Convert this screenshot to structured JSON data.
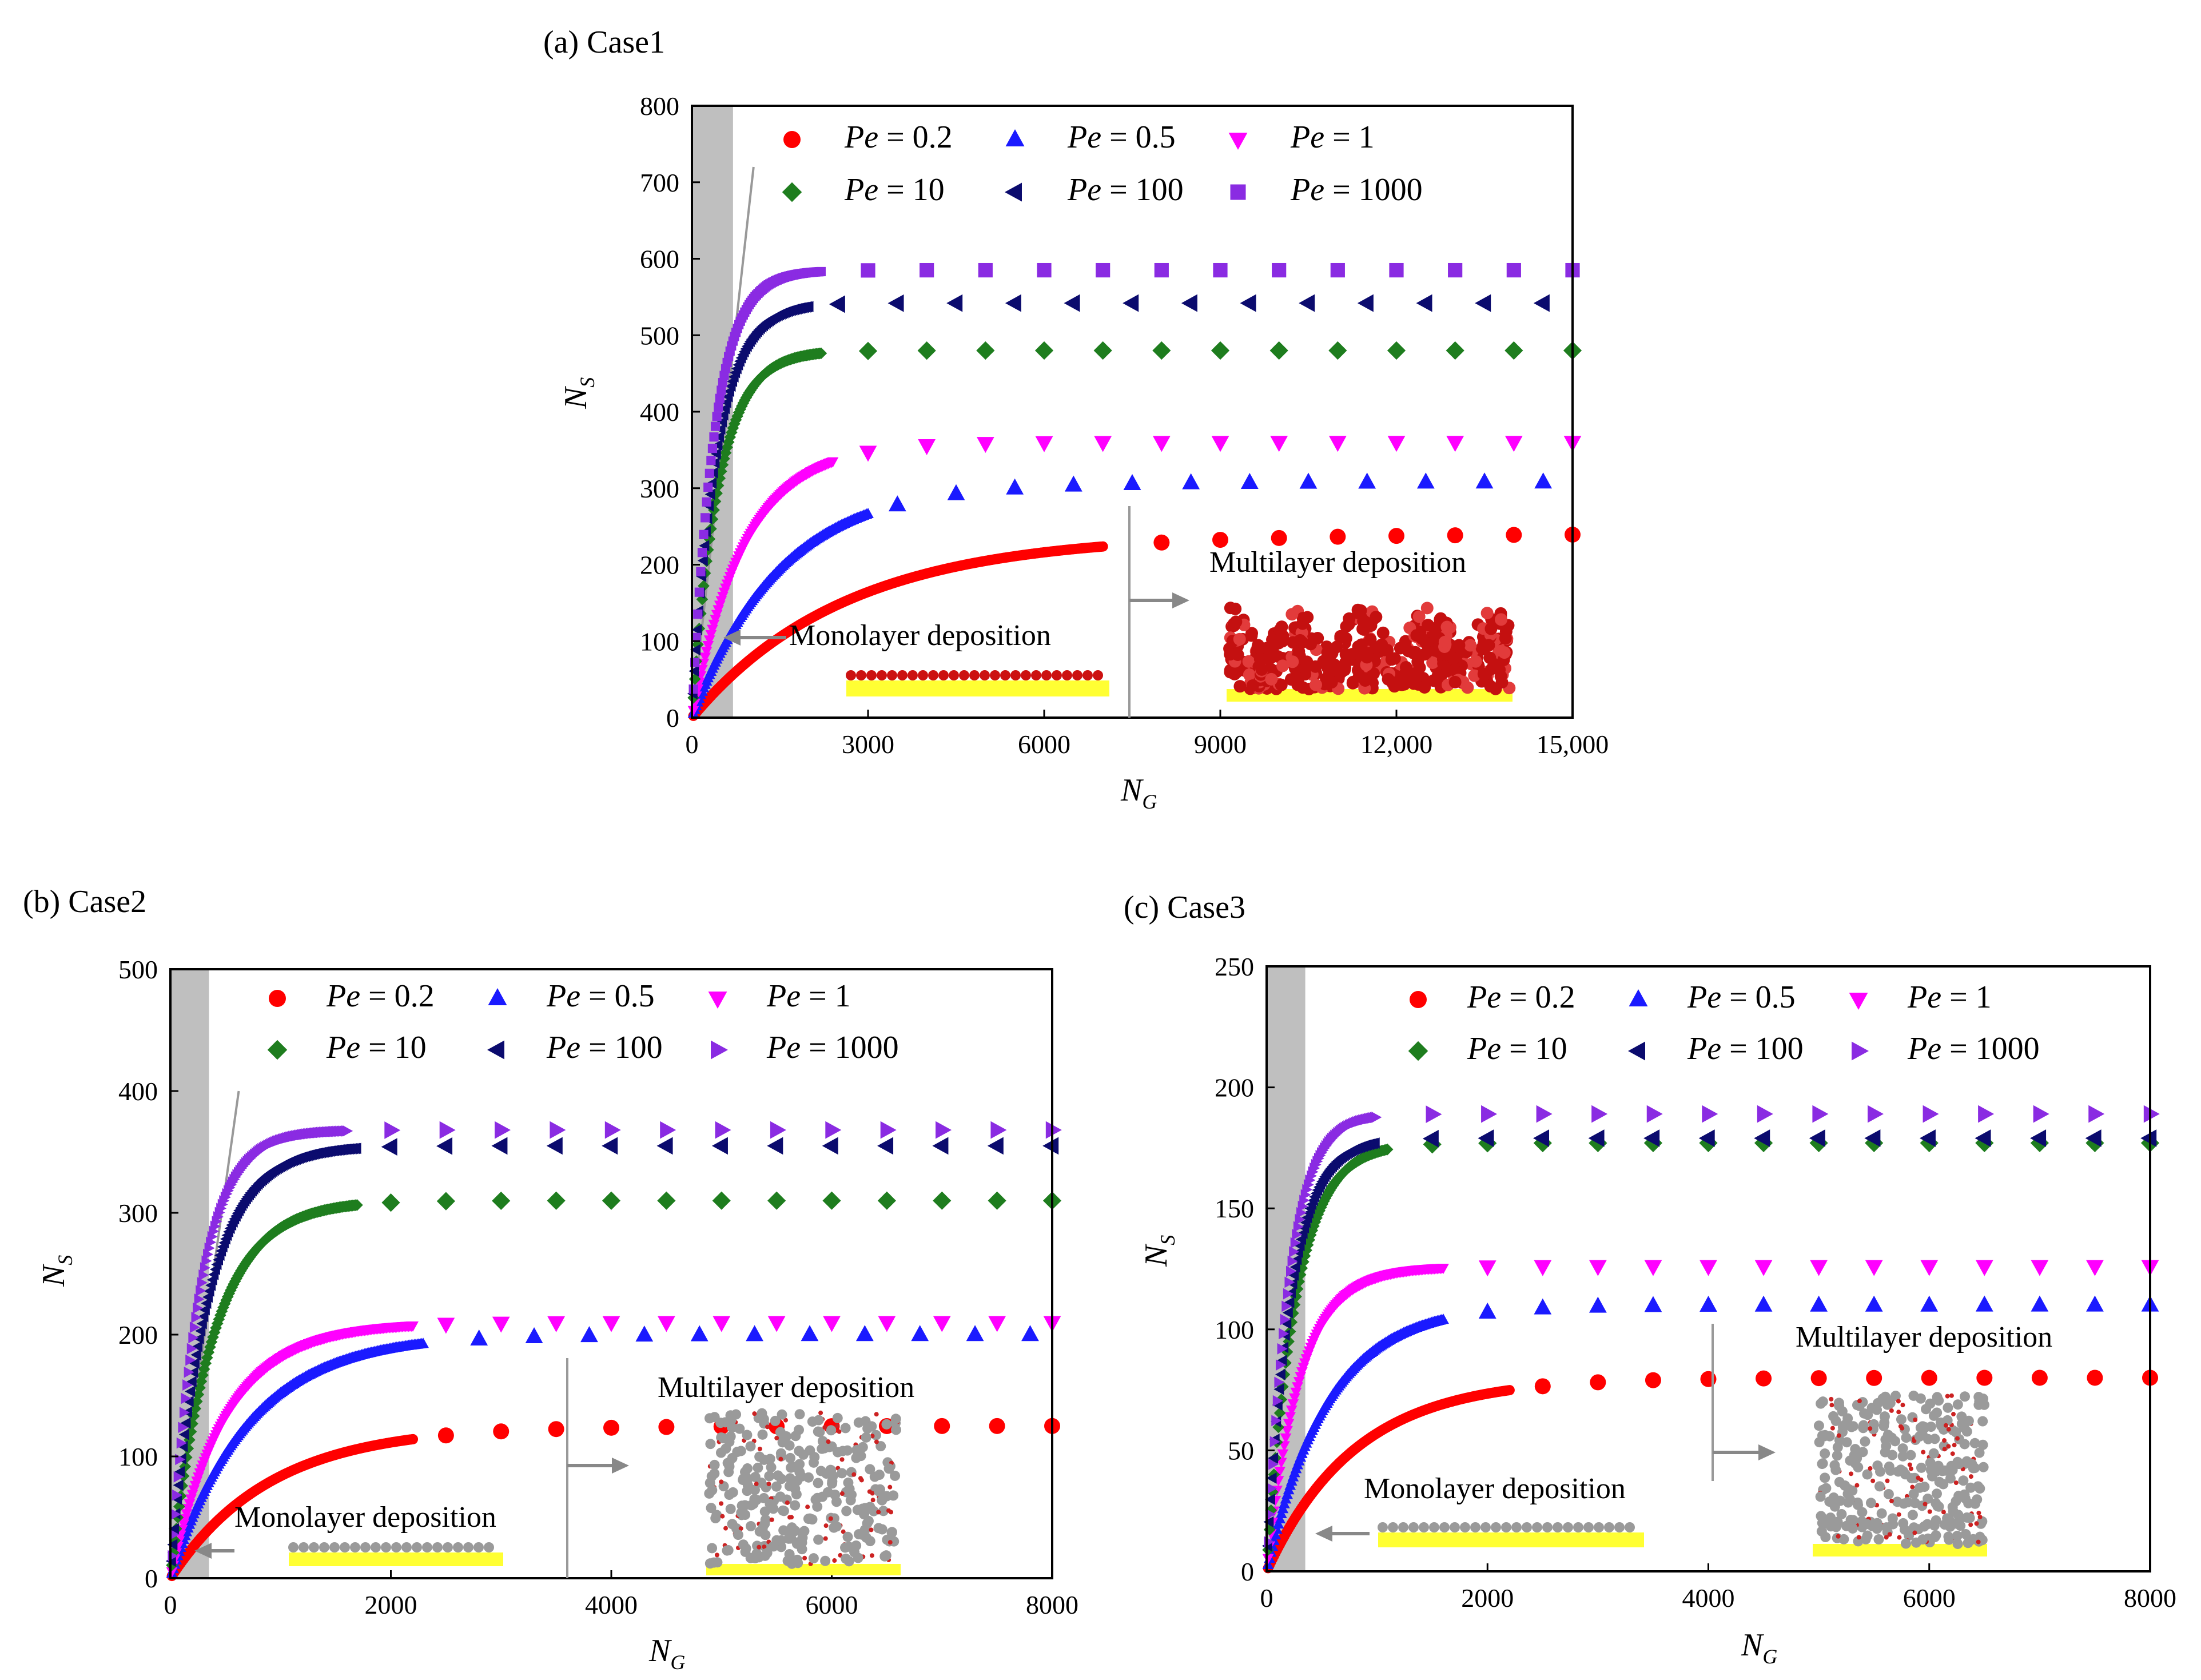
{
  "colors": {
    "pe_0_2": "#ff0000",
    "pe_0_5": "#1a1aff",
    "pe_1": "#ff00ff",
    "pe_10": "#1e7d1e",
    "pe_100": "#0b0b6e",
    "pe_1000": "#8a2be2",
    "shade": "#bfbfbf",
    "substrate": "#ffff33"
  },
  "legend_entries": [
    {
      "key": "pe_0_2",
      "prefix": "Pe",
      "value": " = 0.2",
      "marker": "circle"
    },
    {
      "key": "pe_0_5",
      "prefix": "Pe",
      "value": " = 0.5",
      "marker": "triangle-up"
    },
    {
      "key": "pe_1",
      "prefix": "Pe",
      "value": " = 1",
      "marker": "triangle-down"
    },
    {
      "key": "pe_10",
      "prefix": "Pe",
      "value": " = 10",
      "marker": "diamond"
    },
    {
      "key": "pe_100",
      "prefix": "Pe",
      "value": " = 100",
      "marker": "triangle-left"
    },
    {
      "key": "pe_1000",
      "prefix": "Pe",
      "value": " = 1000",
      "marker": "square"
    }
  ],
  "chart_data": [
    {
      "id": "a",
      "type": "scatter",
      "title": "(a) Case1",
      "xlabel_main": "N",
      "xlabel_sub": "G",
      "ylabel_main": "N",
      "ylabel_sub": "S",
      "xlim": [
        0,
        15000
      ],
      "ylim": [
        0,
        800
      ],
      "xticks": [
        0,
        3000,
        6000,
        9000,
        12000,
        15000
      ],
      "xtick_labels": [
        "0",
        "3000",
        "6000",
        "9000",
        "12,000",
        "15,000"
      ],
      "yticks": [
        0,
        100,
        200,
        300,
        400,
        500,
        600,
        700,
        800
      ],
      "ytick_labels": [
        "0",
        "100",
        "200",
        "300",
        "400",
        "500",
        "600",
        "700",
        "800"
      ],
      "shaded_region_x": [
        0,
        700
      ],
      "reference_line": [
        [
          0,
          0
        ],
        [
          1050,
          720
        ]
      ],
      "mono_label": "Monolayer deposition",
      "multi_label": "Multilayer deposition",
      "series": [
        {
          "key": "pe_0_2",
          "plateau": 240,
          "k": 2600,
          "dense_end": 7000,
          "sparse_step": 1000,
          "sparse_start": 8000,
          "sparse_end": 15000,
          "marker": "circle"
        },
        {
          "key": "pe_0_5",
          "plateau": 308,
          "k": 1500,
          "dense_end": 3000,
          "sparse_step": 1000,
          "sparse_start": 3500,
          "sparse_end": 15000,
          "marker": "triangle-up"
        },
        {
          "key": "pe_1",
          "plateau": 360,
          "k": 900,
          "dense_end": 2400,
          "sparse_step": 1000,
          "sparse_start": 3000,
          "sparse_end": 15000,
          "marker": "triangle-down"
        },
        {
          "key": "pe_10",
          "plateau": 480,
          "k": 450,
          "dense_end": 2200,
          "sparse_step": 1000,
          "sparse_start": 3000,
          "sparse_end": 15000,
          "marker": "diamond"
        },
        {
          "key": "pe_100",
          "plateau": 542,
          "k": 420,
          "dense_end": 2000,
          "sparse_step": 1000,
          "sparse_start": 2500,
          "sparse_end": 15000,
          "marker": "triangle-left"
        },
        {
          "key": "pe_1000",
          "plateau": 585,
          "k": 380,
          "dense_end": 2200,
          "sparse_step": 1000,
          "sparse_start": 3000,
          "sparse_end": 15000,
          "marker": "square"
        }
      ]
    },
    {
      "id": "b",
      "type": "scatter",
      "title": "(b) Case2",
      "xlabel_main": "N",
      "xlabel_sub": "G",
      "ylabel_main": "N",
      "ylabel_sub": "S",
      "xlim": [
        0,
        8000
      ],
      "ylim": [
        0,
        500
      ],
      "xticks": [
        0,
        2000,
        4000,
        6000,
        8000
      ],
      "xtick_labels": [
        "0",
        "2000",
        "4000",
        "6000",
        "8000"
      ],
      "yticks": [
        0,
        100,
        200,
        300,
        400,
        500
      ],
      "ytick_labels": [
        "0",
        "100",
        "200",
        "300",
        "400",
        "500"
      ],
      "shaded_region_x": [
        0,
        350
      ],
      "reference_line": [
        [
          0,
          0
        ],
        [
          620,
          400
        ]
      ],
      "mono_label": "Monolayer deposition",
      "multi_label": "Multilayer deposition",
      "series": [
        {
          "key": "pe_0_2",
          "plateau": 125,
          "k": 900,
          "dense_end": 2200,
          "sparse_step": 500,
          "sparse_start": 2500,
          "sparse_end": 8000,
          "marker": "circle"
        },
        {
          "key": "pe_0_5",
          "plateau": 200,
          "k": 700,
          "dense_end": 2300,
          "sparse_step": 500,
          "sparse_start": 2800,
          "sparse_end": 8000,
          "marker": "triangle-up"
        },
        {
          "key": "pe_1",
          "plateau": 210,
          "k": 500,
          "dense_end": 2200,
          "sparse_step": 500,
          "sparse_start": 2500,
          "sparse_end": 8000,
          "marker": "triangle-down"
        },
        {
          "key": "pe_10",
          "plateau": 310,
          "k": 380,
          "dense_end": 1700,
          "sparse_step": 500,
          "sparse_start": 2000,
          "sparse_end": 8000,
          "marker": "diamond"
        },
        {
          "key": "pe_100",
          "plateau": 355,
          "k": 330,
          "dense_end": 1700,
          "sparse_step": 500,
          "sparse_start": 2000,
          "sparse_end": 8000,
          "marker": "triangle-left"
        },
        {
          "key": "pe_1000",
          "plateau": 368,
          "k": 260,
          "dense_end": 1600,
          "sparse_step": 500,
          "sparse_start": 2000,
          "sparse_end": 8000,
          "marker": "triangle-right"
        }
      ]
    },
    {
      "id": "c",
      "type": "scatter",
      "title": "(c) Case3",
      "xlabel_main": "N",
      "xlabel_sub": "G",
      "ylabel_main": "N",
      "ylabel_sub": "S",
      "xlim": [
        0,
        8000
      ],
      "ylim": [
        0,
        250
      ],
      "xticks": [
        0,
        2000,
        4000,
        6000,
        8000
      ],
      "xtick_labels": [
        "0",
        "2000",
        "4000",
        "6000",
        "8000"
      ],
      "yticks": [
        0,
        50,
        100,
        150,
        200,
        250
      ],
      "ytick_labels": [
        "0",
        "50",
        "100",
        "150",
        "200",
        "250"
      ],
      "shaded_region_x": [
        0,
        350
      ],
      "reference_line": null,
      "mono_label": "Monolayer deposition",
      "multi_label": "Multilayer deposition",
      "series": [
        {
          "key": "pe_0_2",
          "plateau": 80,
          "k": 800,
          "dense_end": 2200,
          "sparse_step": 500,
          "sparse_start": 2500,
          "sparse_end": 8000,
          "marker": "circle"
        },
        {
          "key": "pe_0_5",
          "plateau": 110,
          "k": 550,
          "dense_end": 1600,
          "sparse_step": 500,
          "sparse_start": 2000,
          "sparse_end": 8000,
          "marker": "triangle-up"
        },
        {
          "key": "pe_1",
          "plateau": 126,
          "k": 300,
          "dense_end": 1600,
          "sparse_step": 500,
          "sparse_start": 2000,
          "sparse_end": 8000,
          "marker": "triangle-down"
        },
        {
          "key": "pe_10",
          "plateau": 177,
          "k": 260,
          "dense_end": 1100,
          "sparse_step": 500,
          "sparse_start": 1500,
          "sparse_end": 8000,
          "marker": "diamond"
        },
        {
          "key": "pe_100",
          "plateau": 179,
          "k": 220,
          "dense_end": 1000,
          "sparse_step": 500,
          "sparse_start": 1500,
          "sparse_end": 8000,
          "marker": "triangle-left"
        },
        {
          "key": "pe_1000",
          "plateau": 189,
          "k": 200,
          "dense_end": 1000,
          "sparse_step": 500,
          "sparse_start": 1500,
          "sparse_end": 8000,
          "marker": "triangle-right"
        }
      ]
    }
  ]
}
